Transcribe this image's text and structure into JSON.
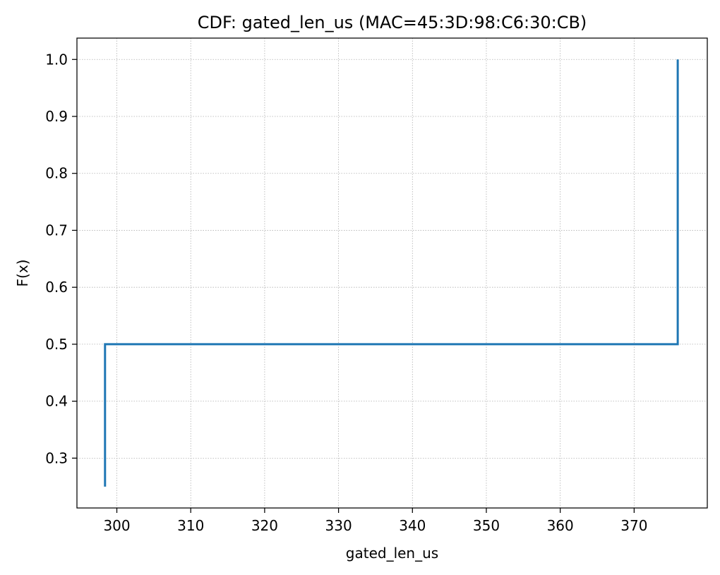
{
  "chart_data": {
    "type": "line",
    "title": "CDF: gated_len_us (MAC=45:3D:98:C6:30:CB)",
    "xlabel": "gated_len_us",
    "ylabel": "F(x)",
    "xlim": [
      294.6,
      379.9
    ],
    "ylim": [
      0.2125,
      1.0375
    ],
    "xticks": [
      300,
      310,
      320,
      330,
      340,
      350,
      360,
      370
    ],
    "yticks": [
      0.3,
      0.4,
      0.5,
      0.6,
      0.7,
      0.8,
      0.9,
      1.0
    ],
    "grid": true,
    "series": [
      {
        "color": "#1f77b4",
        "step": true,
        "x": [
          298.4,
          298.4,
          375.9,
          375.9
        ],
        "y": [
          0.25,
          0.5,
          0.5,
          1.0
        ]
      }
    ]
  }
}
